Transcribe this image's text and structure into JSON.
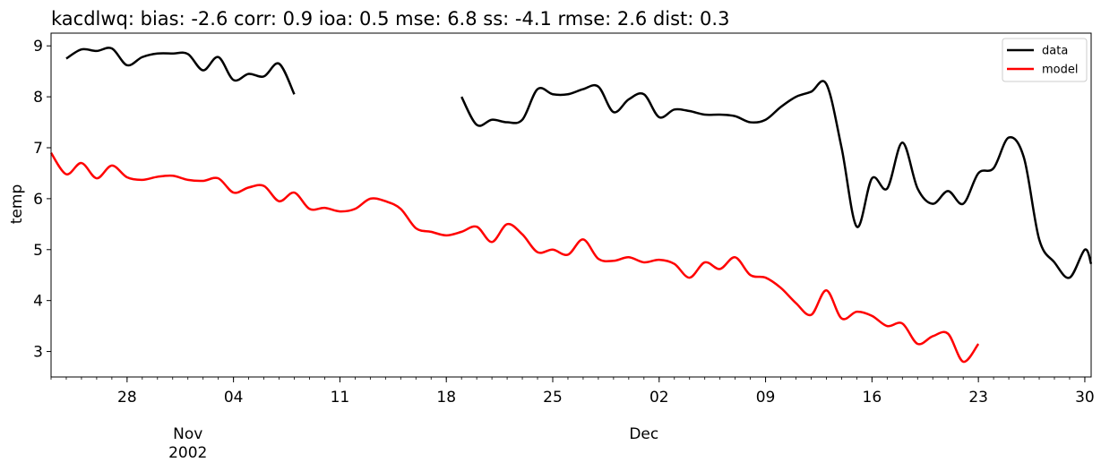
{
  "chart_data": {
    "type": "line",
    "title": "kacdlwq: bias: -2.6  corr: 0.9  ioa: 0.5  mse: 6.8  ss: -4.1  rmse: 2.6  dist: 0.3",
    "xlabel": "",
    "ylabel": "temp",
    "xlim": [
      "2002-10-23",
      "2002-12-30 10:00"
    ],
    "ylim": [
      2.5,
      9.25
    ],
    "y_ticks": [
      3,
      4,
      5,
      6,
      7,
      8,
      9
    ],
    "x_ticks": [
      {
        "date": "2002-10-28",
        "label": "28"
      },
      {
        "date": "2002-11-04",
        "label": "04"
      },
      {
        "date": "2002-11-11",
        "label": "11"
      },
      {
        "date": "2002-11-18",
        "label": "18"
      },
      {
        "date": "2002-11-25",
        "label": "25"
      },
      {
        "date": "2002-12-02",
        "label": "02"
      },
      {
        "date": "2002-12-09",
        "label": "09"
      },
      {
        "date": "2002-12-16",
        "label": "16"
      },
      {
        "date": "2002-12-23",
        "label": "23"
      },
      {
        "date": "2002-12-30",
        "label": "30"
      }
    ],
    "x_secondary_labels": [
      {
        "date": "2002-11-01",
        "label": "Nov"
      },
      {
        "date": "2002-11-01",
        "label": "2002"
      },
      {
        "date": "2002-12-01",
        "label": "Dec"
      }
    ],
    "legend": "top-right",
    "grid": false,
    "series": [
      {
        "name": "data",
        "color": "#000000",
        "segments": [
          [
            [
              "2002-10-24",
              8.75
            ],
            [
              "2002-10-25",
              8.93
            ],
            [
              "2002-10-26",
              8.9
            ],
            [
              "2002-10-27",
              8.95
            ],
            [
              "2002-10-28",
              8.62
            ],
            [
              "2002-10-29",
              8.78
            ],
            [
              "2002-10-30",
              8.85
            ],
            [
              "2002-10-31",
              8.85
            ],
            [
              "2002-11-01",
              8.84
            ],
            [
              "2002-11-02",
              8.52
            ],
            [
              "2002-11-03",
              8.78
            ],
            [
              "2002-11-04",
              8.33
            ],
            [
              "2002-11-05",
              8.45
            ],
            [
              "2002-11-06",
              8.4
            ],
            [
              "2002-11-07",
              8.65
            ],
            [
              "2002-11-08",
              8.05
            ]
          ],
          [
            [
              "2002-11-19",
              8.0
            ],
            [
              "2002-11-20",
              7.45
            ],
            [
              "2002-11-21",
              7.55
            ],
            [
              "2002-11-22",
              7.5
            ],
            [
              "2002-11-23",
              7.55
            ],
            [
              "2002-11-24",
              8.15
            ],
            [
              "2002-11-25",
              8.05
            ],
            [
              "2002-11-26",
              8.05
            ],
            [
              "2002-11-27",
              8.15
            ],
            [
              "2002-11-28",
              8.2
            ],
            [
              "2002-11-29",
              7.7
            ],
            [
              "2002-11-30",
              7.95
            ],
            [
              "2002-12-01",
              8.05
            ],
            [
              "2002-12-02",
              7.6
            ],
            [
              "2002-12-03",
              7.75
            ],
            [
              "2002-12-04",
              7.72
            ],
            [
              "2002-12-05",
              7.65
            ],
            [
              "2002-12-06",
              7.65
            ],
            [
              "2002-12-07",
              7.62
            ],
            [
              "2002-12-08",
              7.5
            ],
            [
              "2002-12-09",
              7.55
            ],
            [
              "2002-12-10",
              7.8
            ],
            [
              "2002-12-11",
              8.0
            ],
            [
              "2002-12-12",
              8.1
            ],
            [
              "2002-12-13",
              8.25
            ],
            [
              "2002-12-14",
              7.0
            ],
            [
              "2002-12-15",
              5.45
            ],
            [
              "2002-12-16",
              6.4
            ],
            [
              "2002-12-17",
              6.2
            ],
            [
              "2002-12-18",
              7.1
            ],
            [
              "2002-12-19",
              6.2
            ],
            [
              "2002-12-20",
              5.9
            ],
            [
              "2002-12-21",
              6.15
            ],
            [
              "2002-12-22",
              5.9
            ],
            [
              "2002-12-23",
              6.5
            ],
            [
              "2002-12-24",
              6.6
            ],
            [
              "2002-12-25",
              7.2
            ],
            [
              "2002-12-26",
              6.8
            ],
            [
              "2002-12-27",
              5.2
            ],
            [
              "2002-12-28",
              4.75
            ],
            [
              "2002-12-29",
              4.45
            ],
            [
              "2002-12-30",
              5.0
            ],
            [
              "2002-12-30 10:00",
              4.72
            ]
          ]
        ]
      },
      {
        "name": "model",
        "color": "#ff0000",
        "segments": [
          [
            [
              "2002-10-23",
              6.9
            ],
            [
              "2002-10-24",
              6.48
            ],
            [
              "2002-10-25",
              6.7
            ],
            [
              "2002-10-26",
              6.4
            ],
            [
              "2002-10-27",
              6.65
            ],
            [
              "2002-10-28",
              6.42
            ],
            [
              "2002-10-29",
              6.37
            ],
            [
              "2002-10-30",
              6.43
            ],
            [
              "2002-10-31",
              6.45
            ],
            [
              "2002-11-01",
              6.37
            ],
            [
              "2002-11-02",
              6.35
            ],
            [
              "2002-11-03",
              6.4
            ],
            [
              "2002-11-04",
              6.12
            ],
            [
              "2002-11-05",
              6.22
            ],
            [
              "2002-11-06",
              6.25
            ],
            [
              "2002-11-07",
              5.95
            ],
            [
              "2002-11-08",
              6.12
            ],
            [
              "2002-11-09",
              5.8
            ],
            [
              "2002-11-10",
              5.82
            ],
            [
              "2002-11-11",
              5.75
            ],
            [
              "2002-11-12",
              5.8
            ],
            [
              "2002-11-13",
              6.0
            ],
            [
              "2002-11-14",
              5.95
            ],
            [
              "2002-11-15",
              5.8
            ],
            [
              "2002-11-16",
              5.42
            ],
            [
              "2002-11-17",
              5.35
            ],
            [
              "2002-11-18",
              5.28
            ],
            [
              "2002-11-19",
              5.35
            ],
            [
              "2002-11-20",
              5.45
            ],
            [
              "2002-11-21",
              5.15
            ],
            [
              "2002-11-22",
              5.5
            ],
            [
              "2002-11-23",
              5.3
            ],
            [
              "2002-11-24",
              4.95
            ],
            [
              "2002-11-25",
              5.0
            ],
            [
              "2002-11-26",
              4.9
            ],
            [
              "2002-11-27",
              5.2
            ],
            [
              "2002-11-28",
              4.82
            ],
            [
              "2002-11-29",
              4.78
            ],
            [
              "2002-11-30",
              4.85
            ],
            [
              "2002-12-01",
              4.75
            ],
            [
              "2002-12-02",
              4.8
            ],
            [
              "2002-12-03",
              4.72
            ],
            [
              "2002-12-04",
              4.45
            ],
            [
              "2002-12-05",
              4.75
            ],
            [
              "2002-12-06",
              4.62
            ],
            [
              "2002-12-07",
              4.85
            ],
            [
              "2002-12-08",
              4.5
            ],
            [
              "2002-12-09",
              4.45
            ],
            [
              "2002-12-10",
              4.25
            ],
            [
              "2002-12-11",
              3.95
            ],
            [
              "2002-12-12",
              3.72
            ],
            [
              "2002-12-13",
              4.2
            ],
            [
              "2002-12-14",
              3.65
            ],
            [
              "2002-12-15",
              3.78
            ],
            [
              "2002-12-16",
              3.7
            ],
            [
              "2002-12-17",
              3.5
            ],
            [
              "2002-12-18",
              3.55
            ],
            [
              "2002-12-19",
              3.15
            ],
            [
              "2002-12-20",
              3.3
            ],
            [
              "2002-12-21",
              3.35
            ],
            [
              "2002-12-22",
              2.8
            ],
            [
              "2002-12-23",
              3.15
            ]
          ]
        ]
      }
    ]
  }
}
